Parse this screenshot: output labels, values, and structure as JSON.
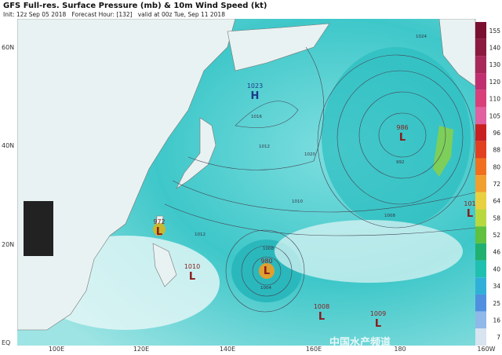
{
  "header": {
    "title": "GFS Full-res. Surface Pressure (mb) & 10m Wind Speed (kt)",
    "subtitle": "Init: 12z Sep 05 2018   Forecast Hour: [132]   valid at 00z Tue, Sep 11 2018"
  },
  "lat_labels": [
    "60N",
    "40N",
    "20N",
    "EQ"
  ],
  "lon_labels": [
    "100E",
    "120E",
    "140E",
    "160E",
    "180",
    "160W"
  ],
  "colorbar_ticks": [
    155,
    140,
    130,
    120,
    110,
    105,
    96,
    88,
    80,
    72,
    64,
    58,
    52,
    46,
    40,
    34,
    25,
    16,
    7
  ],
  "systems": [
    {
      "value": "1023",
      "letter": "H"
    },
    {
      "value": "986",
      "letter": "L"
    },
    {
      "value": "972",
      "letter": "L"
    },
    {
      "value": "980",
      "letter": "L"
    },
    {
      "value": "1010",
      "letter": "L"
    },
    {
      "value": "1008",
      "letter": "L"
    },
    {
      "value": "1009",
      "letter": "L"
    },
    {
      "value": "101",
      "letter": "L"
    }
  ],
  "isobar_labels": [
    "1024",
    "1020",
    "1016",
    "1012",
    "1012",
    "1010",
    "1008",
    "1004",
    "992",
    "1008"
  ],
  "watermark": "中国水产频道"
}
